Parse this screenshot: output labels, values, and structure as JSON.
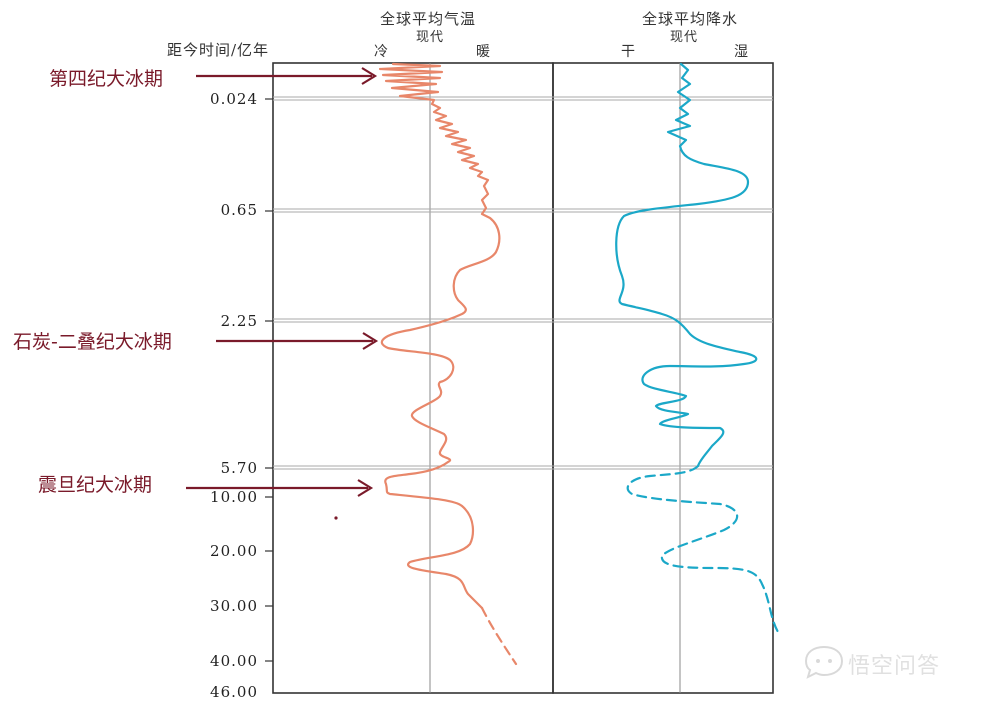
{
  "chart_data": {
    "type": "line",
    "y_axis": {
      "label": "距今时间/亿年",
      "ticks": [
        "0.024",
        "0.65",
        "2.25",
        "5.70",
        "10.00",
        "20.00",
        "30.00",
        "40.00",
        "46.00"
      ]
    },
    "temperature_panel": {
      "title": "全球平均气温",
      "reference_label": "现代",
      "left_label": "冷",
      "right_label": "暖",
      "color": "#E8876A"
    },
    "precipitation_panel": {
      "title": "全球平均降水",
      "reference_label": "现代",
      "left_label": "干",
      "right_label": "湿",
      "color": "#1BA8C8"
    },
    "annotations": [
      {
        "text": "第四纪大冰期",
        "at_time": "0.00"
      },
      {
        "text": "石炭-二叠纪大冰期",
        "at_time": "≈3.0"
      },
      {
        "text": "震旦纪大冰期",
        "at_time": "≈6–8"
      }
    ],
    "annotation_color": "#7A1A2A"
  },
  "watermark": {
    "text": "悟空问答",
    "icon": "chat-bubble-icon"
  }
}
